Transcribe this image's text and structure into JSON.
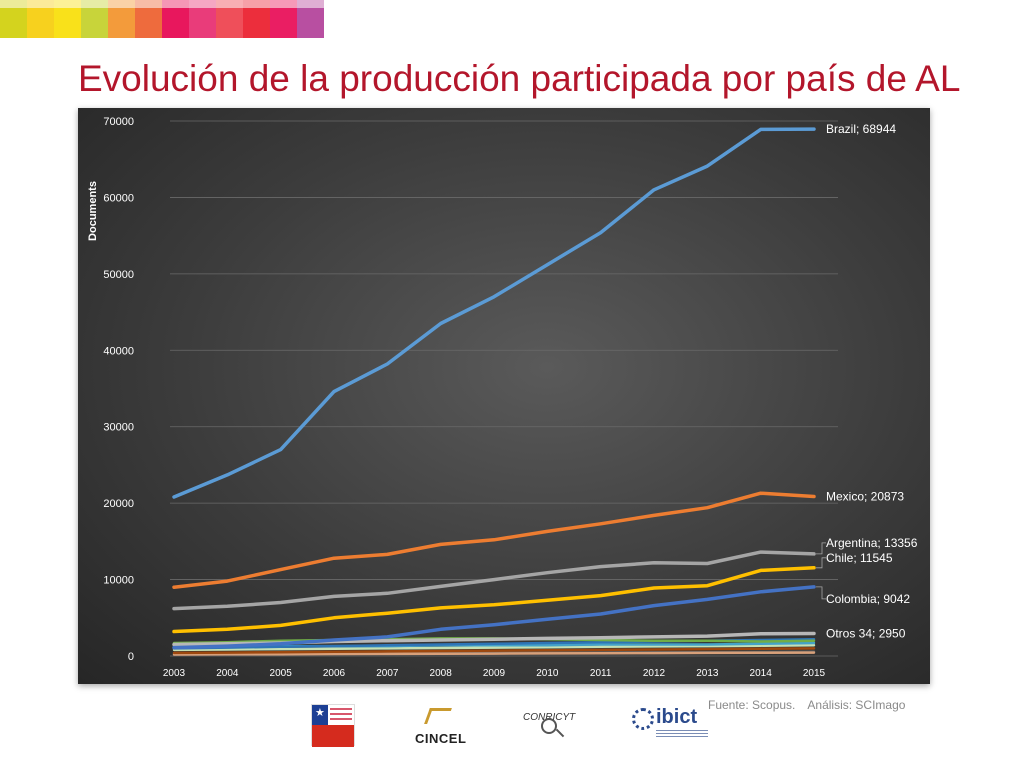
{
  "slide": {
    "title": "Evolución de la producción participada por país de AL",
    "source": "Fuente: Scopus.",
    "analysis": "Análisis: SCImago",
    "stripe_colors": [
      "#d4d31e",
      "#f7d11e",
      "#f9e11a",
      "#c8d43a",
      "#f39b3b",
      "#ee6b3d",
      "#e8175d",
      "#e93c7a",
      "#ef4f5a",
      "#ec2e3c",
      "#ea1e63",
      "#b84fa1"
    ]
  },
  "chart_data": {
    "type": "line",
    "title": "",
    "xlabel": "",
    "ylabel": "Documents",
    "x": [
      "2003",
      "2004",
      "2005",
      "2006",
      "2007",
      "2008",
      "2009",
      "2010",
      "2011",
      "2012",
      "2013",
      "2014",
      "2015"
    ],
    "ylim": [
      0,
      70000
    ],
    "yticks": [
      "0",
      "10000",
      "20000",
      "30000",
      "40000",
      "50000",
      "60000",
      "70000"
    ],
    "grid": true,
    "series": [
      {
        "name": "Brazil",
        "label": "Brazil; 68944",
        "color": "#5b9bd5",
        "values": [
          20800,
          23700,
          27000,
          34600,
          38200,
          43500,
          47000,
          51200,
          55400,
          61000,
          64100,
          68900,
          68944
        ]
      },
      {
        "name": "Mexico",
        "label": "Mexico; 20873",
        "color": "#ed7d31",
        "values": [
          9000,
          9800,
          11300,
          12800,
          13300,
          14600,
          15200,
          16300,
          17300,
          18400,
          19400,
          21300,
          20873
        ]
      },
      {
        "name": "Argentina",
        "label": "Argentina; 13356",
        "color": "#a5a5a5",
        "values": [
          6200,
          6500,
          7000,
          7800,
          8200,
          9100,
          10000,
          10900,
          11700,
          12200,
          12100,
          13600,
          13356
        ]
      },
      {
        "name": "Chile",
        "label": "Chile; 11545",
        "color": "#ffc000",
        "values": [
          3200,
          3500,
          4000,
          5000,
          5600,
          6300,
          6700,
          7300,
          7900,
          8900,
          9200,
          11200,
          11545
        ]
      },
      {
        "name": "Colombia",
        "label": "Colombia; 9042",
        "color": "#4472c4",
        "values": [
          1100,
          1300,
          1600,
          2100,
          2500,
          3500,
          4100,
          4800,
          5500,
          6600,
          7400,
          8400,
          9042
        ]
      },
      {
        "name": "Otros 34",
        "label": "Otros 34; 2950",
        "color": "#b7b7b7",
        "values": [
          1500,
          1600,
          1700,
          1900,
          2000,
          2100,
          2200,
          2300,
          2400,
          2500,
          2600,
          2900,
          2950
        ]
      },
      {
        "name": "",
        "label": "",
        "color": "#70ad47",
        "values": [
          1700,
          1800,
          2000,
          2100,
          2200,
          2300,
          2300,
          2200,
          2100,
          2000,
          2000,
          1900,
          2000
        ]
      },
      {
        "name": "",
        "label": "",
        "color": "#2e75b6",
        "values": [
          1000,
          1100,
          1200,
          1300,
          1400,
          1500,
          1600,
          1700,
          1800,
          1900,
          2000,
          2100,
          2200
        ]
      },
      {
        "name": "",
        "label": "",
        "color": "#43a2c8",
        "values": [
          1200,
          1200,
          1300,
          1300,
          1300,
          1400,
          1400,
          1400,
          1500,
          1500,
          1500,
          1600,
          1700
        ]
      },
      {
        "name": "",
        "label": "",
        "color": "#9e480e",
        "values": [
          400,
          450,
          500,
          550,
          600,
          650,
          700,
          750,
          800,
          850,
          900,
          950,
          1000
        ]
      },
      {
        "name": "",
        "label": "",
        "color": "#c5e0b4",
        "values": [
          800,
          850,
          900,
          950,
          1000,
          1050,
          1100,
          1150,
          1200,
          1250,
          1300,
          1350,
          1400
        ]
      },
      {
        "name": "",
        "label": "",
        "color": "#d8a07a",
        "values": [
          200,
          220,
          240,
          260,
          280,
          300,
          320,
          340,
          360,
          380,
          400,
          420,
          450
        ]
      },
      {
        "name": "",
        "label": "",
        "color": "#636363",
        "values": [
          300,
          320,
          340,
          360,
          380,
          400,
          420,
          440,
          460,
          480,
          500,
          520,
          550
        ]
      }
    ]
  }
}
